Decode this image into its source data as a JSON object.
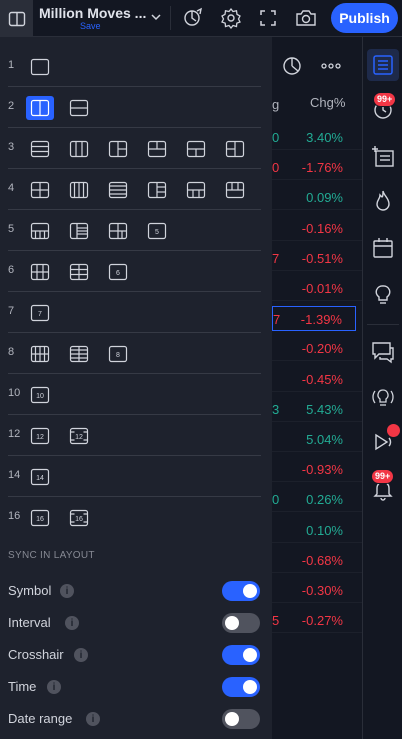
{
  "topbar": {
    "title": "Million Moves ...",
    "save_label": "Save",
    "publish_label": "Publish"
  },
  "layout_rows": [
    {
      "num": "1"
    },
    {
      "num": "2"
    },
    {
      "num": "3"
    },
    {
      "num": "4"
    },
    {
      "num": "5"
    },
    {
      "num": "6"
    },
    {
      "num": "7"
    },
    {
      "num": "8"
    },
    {
      "num": "10"
    },
    {
      "num": "12"
    },
    {
      "num": "14"
    },
    {
      "num": "16"
    }
  ],
  "layout_icon_labels": {
    "l5d": "5",
    "l6c": "6",
    "l7a": "7",
    "l8c": "8",
    "l10": "10",
    "l12a": "12",
    "l12b": "12",
    "l14": "14",
    "l16a": "16",
    "l16b": "16"
  },
  "sync": {
    "heading": "SYNC IN LAYOUT",
    "items": [
      {
        "label": "Symbol",
        "on": true
      },
      {
        "label": "Interval",
        "on": false
      },
      {
        "label": "Crosshair",
        "on": true
      },
      {
        "label": "Time",
        "on": true
      },
      {
        "label": "Date range",
        "on": false
      }
    ]
  },
  "watchlist": {
    "column_header": "Chg%",
    "header_edge": "g",
    "rows": [
      {
        "edge": "0",
        "chg": "3.40%",
        "dir": "pos"
      },
      {
        "edge": "0",
        "chg": "-1.76%",
        "dir": "neg"
      },
      {
        "edge": "",
        "chg": "0.09%",
        "dir": "pos"
      },
      {
        "edge": "",
        "chg": "-0.16%",
        "dir": "neg"
      },
      {
        "edge": "7",
        "chg": "-0.51%",
        "dir": "neg"
      },
      {
        "edge": "",
        "chg": "-0.01%",
        "dir": "neg"
      },
      {
        "edge": "7",
        "chg": "-1.39%",
        "dir": "neg",
        "selected": true
      },
      {
        "edge": "",
        "chg": "-0.20%",
        "dir": "neg"
      },
      {
        "edge": "",
        "chg": "-0.45%",
        "dir": "neg"
      },
      {
        "edge": "3",
        "chg": "5.43%",
        "dir": "pos"
      },
      {
        "edge": "",
        "chg": "5.04%",
        "dir": "pos"
      },
      {
        "edge": "",
        "chg": "-0.93%",
        "dir": "neg"
      },
      {
        "edge": "0",
        "chg": "0.26%",
        "dir": "pos"
      },
      {
        "edge": "",
        "chg": "0.10%",
        "dir": "pos"
      },
      {
        "edge": "",
        "chg": "-0.68%",
        "dir": "neg"
      },
      {
        "edge": "",
        "chg": "-0.30%",
        "dir": "neg"
      },
      {
        "edge": "5",
        "chg": "-0.27%",
        "dir": "neg"
      }
    ]
  },
  "sidebar": {
    "badges": [
      "99+",
      "99+"
    ]
  },
  "colors": {
    "accent": "#2962ff",
    "positive": "#22ab94",
    "negative": "#f23645",
    "panel": "#1e222d",
    "background": "#131722"
  }
}
